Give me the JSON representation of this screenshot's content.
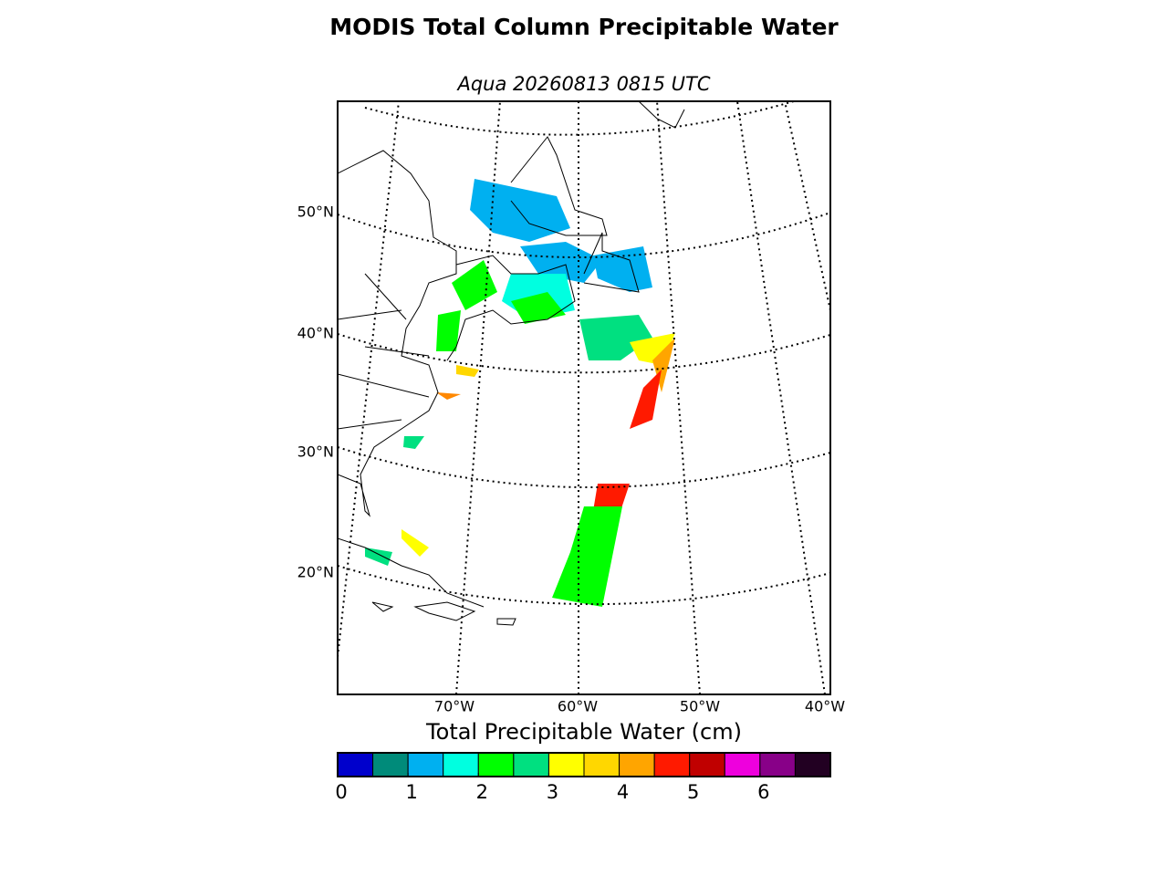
{
  "title": "MODIS Total Column Precipitable Water",
  "subtitle": "Aqua 20260813 0815 UTC",
  "map": {
    "lat_labels": [
      "50°N",
      "40°N",
      "30°N",
      "20°N"
    ],
    "lon_labels": [
      "70°W",
      "60°W",
      "50°W",
      "40°W"
    ]
  },
  "colorbar": {
    "label": "Total Precipitable Water (cm)",
    "bounds": [
      0,
      0.5,
      1,
      1.5,
      2,
      2.5,
      3,
      3.5,
      4,
      4.5,
      5,
      5.5,
      6,
      6.5,
      7
    ],
    "colors": [
      "#0000cc",
      "#008b7a",
      "#00b0f0",
      "#00ffe0",
      "#00ff00",
      "#00e080",
      "#ffff00",
      "#ffd700",
      "#ffa500",
      "#ff1a00",
      "#c00000",
      "#ee00dd",
      "#880088",
      "#220022"
    ],
    "ticks": [
      0,
      1,
      2,
      3,
      4,
      5,
      6
    ]
  }
}
